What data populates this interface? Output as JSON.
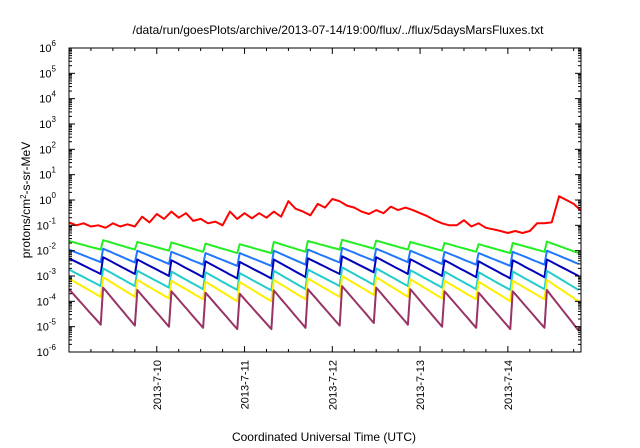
{
  "chart_data": {
    "type": "line",
    "title": "/data/run/goesPlots/archive/2013-07-14/19:00/flux/../flux/5daysMarsFluxes.txt",
    "xlabel": "Coordinated Universal Time (UTC)",
    "ylabel": {
      "pre": "protons/cm",
      "sup": "2",
      "post": "-s-sr-MeV"
    },
    "yscale": "log",
    "ylim_exp": [
      -6,
      6
    ],
    "y_ticks": [
      {
        "base": "10",
        "exp": "-6"
      },
      {
        "base": "10",
        "exp": "-5"
      },
      {
        "base": "10",
        "exp": "-4"
      },
      {
        "base": "10",
        "exp": "-3"
      },
      {
        "base": "10",
        "exp": "-2"
      },
      {
        "base": "10",
        "exp": "-1"
      },
      {
        "base": "10",
        "exp": "0"
      },
      {
        "base": "10",
        "exp": "1"
      },
      {
        "base": "10",
        "exp": "2"
      },
      {
        "base": "10",
        "exp": "3"
      },
      {
        "base": "10",
        "exp": "4"
      },
      {
        "base": "10",
        "exp": "5"
      },
      {
        "base": "10",
        "exp": "6"
      }
    ],
    "xlim": [
      "2013-07-09 00:00",
      "2013-07-14 20:00"
    ],
    "x_ticks": [
      {
        "label": "2013-7-10",
        "value": "2013-07-10 00:00"
      },
      {
        "label": "2013-7-11",
        "value": "2013-07-11 00:00"
      },
      {
        "label": "2013-7-12",
        "value": "2013-07-12 00:00"
      },
      {
        "label": "2013-7-13",
        "value": "2013-07-13 00:00"
      },
      {
        "label": "2013-7-14",
        "value": "2013-07-14 00:00"
      }
    ],
    "grid": false,
    "legend": "none",
    "series": [
      {
        "color": "#ff0000",
        "x": [
          "2013-07-09 00:00",
          "2013-07-09 02:00",
          "2013-07-09 04:00",
          "2013-07-09 06:00",
          "2013-07-09 08:00",
          "2013-07-09 10:00",
          "2013-07-09 12:00",
          "2013-07-09 14:00",
          "2013-07-09 16:00",
          "2013-07-09 18:00",
          "2013-07-09 20:00",
          "2013-07-09 22:00",
          "2013-07-10 00:00",
          "2013-07-10 02:00",
          "2013-07-10 04:00",
          "2013-07-10 06:00",
          "2013-07-10 08:00",
          "2013-07-10 10:00",
          "2013-07-10 12:00",
          "2013-07-10 14:00",
          "2013-07-10 16:00",
          "2013-07-10 18:00",
          "2013-07-10 20:00",
          "2013-07-10 22:00",
          "2013-07-11 00:00",
          "2013-07-11 02:00",
          "2013-07-11 04:00",
          "2013-07-11 06:00",
          "2013-07-11 08:00",
          "2013-07-11 10:00",
          "2013-07-11 12:00",
          "2013-07-11 14:00",
          "2013-07-11 16:00",
          "2013-07-11 18:00",
          "2013-07-11 20:00",
          "2013-07-11 22:00",
          "2013-07-12 00:00",
          "2013-07-12 02:00",
          "2013-07-12 04:00",
          "2013-07-12 06:00",
          "2013-07-12 08:00",
          "2013-07-12 10:00",
          "2013-07-12 12:00",
          "2013-07-12 14:00",
          "2013-07-12 16:00",
          "2013-07-12 18:00",
          "2013-07-12 20:00",
          "2013-07-12 22:00",
          "2013-07-13 00:00",
          "2013-07-13 02:00",
          "2013-07-13 04:00",
          "2013-07-13 06:00",
          "2013-07-13 08:00",
          "2013-07-13 10:00",
          "2013-07-13 12:00",
          "2013-07-13 14:00",
          "2013-07-13 16:00",
          "2013-07-13 18:00",
          "2013-07-13 20:00",
          "2013-07-13 22:00",
          "2013-07-14 00:00",
          "2013-07-14 02:00",
          "2013-07-14 04:00",
          "2013-07-14 06:00",
          "2013-07-14 08:00",
          "2013-07-14 10:00",
          "2013-07-14 12:00",
          "2013-07-14 14:00",
          "2013-07-14 16:00",
          "2013-07-14 18:00",
          "2013-07-14 20:00"
        ],
        "y": [
          0.13,
          0.1,
          0.12,
          0.09,
          0.1,
          0.08,
          0.12,
          0.09,
          0.11,
          0.09,
          0.22,
          0.13,
          0.28,
          0.18,
          0.35,
          0.2,
          0.3,
          0.15,
          0.18,
          0.12,
          0.14,
          0.1,
          0.35,
          0.18,
          0.3,
          0.19,
          0.3,
          0.2,
          0.35,
          0.22,
          0.9,
          0.45,
          0.35,
          0.25,
          0.7,
          0.5,
          1.1,
          0.9,
          0.6,
          0.5,
          0.35,
          0.28,
          0.4,
          0.3,
          0.55,
          0.4,
          0.5,
          0.4,
          0.3,
          0.23,
          0.16,
          0.12,
          0.1,
          0.1,
          0.16,
          0.09,
          0.12,
          0.08,
          0.07,
          0.06,
          0.05,
          0.06,
          0.05,
          0.06,
          0.12,
          0.12,
          0.13,
          1.4,
          1.0,
          0.7,
          0.38
        ]
      },
      {
        "color": "#22ee22",
        "peaks": [
          0.024,
          0.026,
          0.022,
          0.021,
          0.019,
          0.018,
          0.022,
          0.024,
          0.027,
          0.025,
          0.022,
          0.02,
          0.018,
          0.02,
          0.023
        ],
        "troughs": [
          0.011,
          0.011,
          0.01,
          0.009,
          0.008,
          0.008,
          0.009,
          0.011,
          0.012,
          0.011,
          0.01,
          0.009,
          0.008,
          0.009,
          0.008
        ]
      },
      {
        "color": "#2277ff",
        "peaks": [
          0.011,
          0.012,
          0.01,
          0.009,
          0.008,
          0.008,
          0.01,
          0.011,
          0.013,
          0.012,
          0.01,
          0.009,
          0.008,
          0.009,
          0.01
        ],
        "troughs": [
          0.0035,
          0.0034,
          0.003,
          0.0028,
          0.0025,
          0.0025,
          0.0028,
          0.0034,
          0.004,
          0.0035,
          0.003,
          0.0028,
          0.0025,
          0.0028,
          0.003
        ]
      },
      {
        "color": "#0000bb",
        "peaks": [
          0.005,
          0.0055,
          0.0045,
          0.0042,
          0.0038,
          0.0036,
          0.0045,
          0.005,
          0.006,
          0.0055,
          0.0046,
          0.0042,
          0.0038,
          0.0042,
          0.0045
        ],
        "troughs": [
          0.0012,
          0.0012,
          0.001,
          0.0009,
          0.0008,
          0.0008,
          0.0009,
          0.0012,
          0.0014,
          0.0012,
          0.001,
          0.0009,
          0.0008,
          0.0009,
          0.001
        ]
      },
      {
        "color": "#22cccc",
        "peaks": [
          0.0018,
          0.002,
          0.0016,
          0.0015,
          0.0014,
          0.0013,
          0.0016,
          0.0018,
          0.0022,
          0.002,
          0.0017,
          0.0015,
          0.0014,
          0.0015,
          0.0016
        ],
        "troughs": [
          0.0004,
          0.0004,
          0.00035,
          0.0003,
          0.00028,
          0.00027,
          0.0003,
          0.0004,
          0.00045,
          0.0004,
          0.00035,
          0.0003,
          0.00028,
          0.0003,
          0.00028
        ]
      },
      {
        "color": "#ffee00",
        "peaks": [
          0.0008,
          0.0009,
          0.0007,
          0.00065,
          0.0006,
          0.00058,
          0.0007,
          0.0008,
          0.001,
          0.0009,
          0.00075,
          0.00065,
          0.0006,
          0.00065,
          0.0007
        ],
        "troughs": [
          0.00015,
          0.00015,
          0.00013,
          0.00012,
          0.0001,
          0.0001,
          0.00012,
          0.00015,
          0.00018,
          0.00015,
          0.00013,
          0.00012,
          0.0001,
          0.00012,
          0.0001
        ]
      },
      {
        "color": "#993366",
        "peaks": [
          0.0003,
          0.00035,
          0.00028,
          0.00025,
          0.00022,
          0.0002,
          0.00027,
          0.0003,
          0.0004,
          0.00035,
          0.0003,
          0.00025,
          0.00022,
          0.00025,
          0.00028
        ],
        "troughs": [
          1.2e-05,
          1.1e-05,
          1e-05,
          9e-06,
          8e-06,
          8e-06,
          9e-06,
          1.1e-05,
          1.4e-05,
          1.2e-05,
          1e-05,
          9e-06,
          8e-06,
          9e-06,
          7e-06
        ]
      }
    ]
  }
}
